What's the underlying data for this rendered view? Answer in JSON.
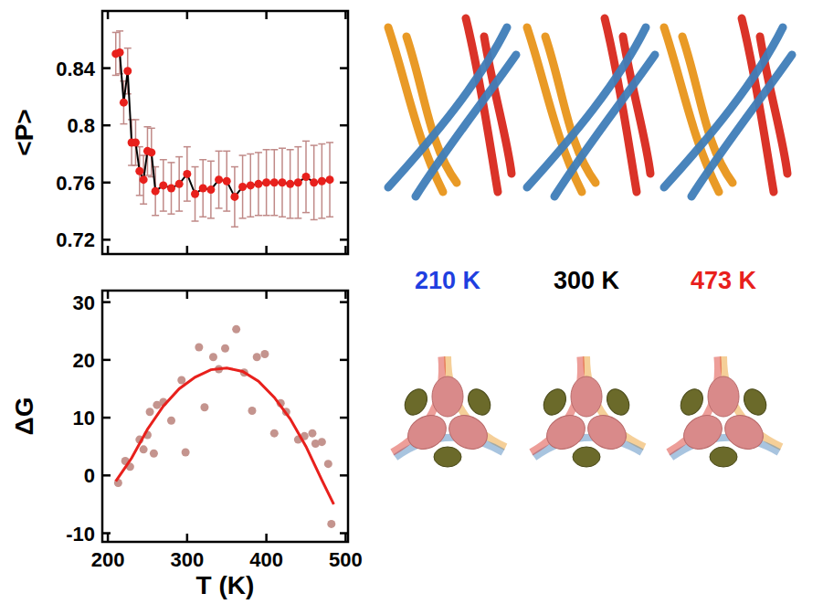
{
  "chart_data": [
    {
      "type": "line",
      "y_label": "<P>",
      "x": [
        210,
        215,
        220,
        225,
        230,
        235,
        240,
        245,
        250,
        255,
        260,
        270,
        280,
        290,
        300,
        310,
        320,
        330,
        340,
        350,
        360,
        370,
        380,
        390,
        400,
        410,
        420,
        430,
        440,
        450,
        460,
        470,
        480
      ],
      "series": [
        {
          "color": "#e8201c",
          "marker": "circle",
          "values": [
            0.85,
            0.851,
            0.816,
            0.838,
            0.788,
            0.788,
            0.768,
            0.762,
            0.782,
            0.781,
            0.754,
            0.758,
            0.756,
            0.759,
            0.766,
            0.752,
            0.756,
            0.755,
            0.762,
            0.761,
            0.75,
            0.757,
            0.758,
            0.759,
            0.76,
            0.76,
            0.76,
            0.759,
            0.76,
            0.764,
            0.76,
            0.761,
            0.762
          ],
          "errors": [
            0.015,
            0.015,
            0.015,
            0.016,
            0.016,
            0.016,
            0.017,
            0.017,
            0.017,
            0.017,
            0.017,
            0.018,
            0.018,
            0.019,
            0.019,
            0.019,
            0.02,
            0.02,
            0.02,
            0.021,
            0.021,
            0.022,
            0.022,
            0.022,
            0.023,
            0.023,
            0.024,
            0.024,
            0.025,
            0.025,
            0.026,
            0.026,
            0.026
          ]
        }
      ],
      "xlim": [
        193,
        503
      ],
      "xticks": [
        200,
        300,
        400,
        500
      ],
      "ylim": [
        0.71,
        0.88
      ],
      "yticks": [
        0.72,
        0.76,
        0.8,
        0.84
      ],
      "tick_labels": "y"
    },
    {
      "type": "scatter",
      "x_label": "T (K)",
      "y_label": "ΔG",
      "series": [
        {
          "type": "scatter",
          "color": "#c4948e",
          "marker": "circle",
          "x": [
            213,
            222,
            228,
            240,
            245,
            250,
            253,
            258,
            262,
            270,
            280,
            293,
            298,
            315,
            322,
            333,
            340,
            348,
            362,
            372,
            382,
            388,
            398,
            410,
            418,
            425,
            440,
            448,
            458,
            462,
            470,
            478,
            482
          ],
          "values": [
            -1.3,
            2.5,
            1.5,
            6.2,
            4.5,
            7,
            11,
            3.8,
            12.2,
            12.7,
            9.5,
            16.5,
            4,
            22.2,
            11.8,
            20.5,
            18.4,
            22,
            25.3,
            17.8,
            11.2,
            20.5,
            21,
            7.3,
            12.5,
            11,
            6.2,
            6.8,
            7.3,
            5.5,
            5.8,
            2,
            -8.4
          ]
        },
        {
          "type": "line",
          "color": "#e8201c",
          "x": [
            210,
            230,
            250,
            270,
            290,
            310,
            330,
            350,
            370,
            390,
            410,
            430,
            450,
            470,
            485
          ],
          "values": [
            -1,
            3,
            8,
            12,
            15,
            17,
            18.3,
            18.6,
            18,
            16.3,
            13.5,
            9.8,
            5,
            -0.8,
            -5
          ]
        }
      ],
      "xlim": [
        193,
        503
      ],
      "xticks": [
        200,
        300,
        400,
        500
      ],
      "ylim": [
        -11.5,
        32
      ],
      "yticks": [
        -10,
        0,
        10,
        20,
        30
      ]
    }
  ],
  "structures": {
    "labels": [
      {
        "text": "210 K",
        "color": "#1f3fe0"
      },
      {
        "text": "300 K",
        "color": "#000000"
      },
      {
        "text": "473 K",
        "color": "#e8201c"
      }
    ]
  }
}
